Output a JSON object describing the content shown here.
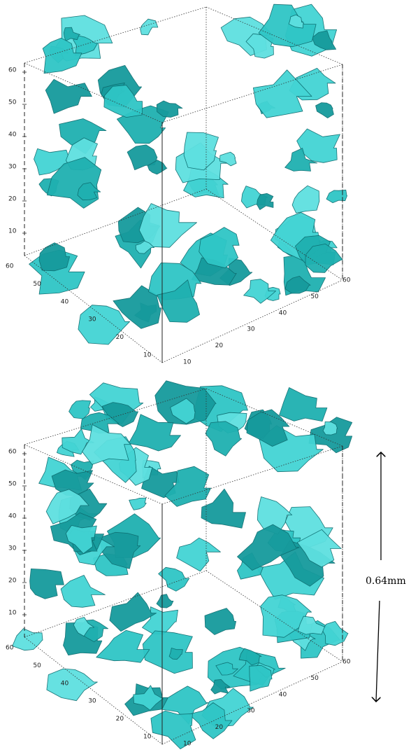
{
  "panels": [
    {
      "z_ticks": [
        "10",
        "20",
        "30",
        "40",
        "50",
        "60"
      ],
      "y_ticks": [
        "10",
        "20",
        "30",
        "40",
        "50",
        "60"
      ],
      "x_ticks": [
        "10",
        "20",
        "30",
        "40",
        "50",
        "60"
      ]
    },
    {
      "z_ticks": [
        "10",
        "20",
        "30",
        "40",
        "50",
        "60"
      ],
      "y_ticks": [
        "10",
        "20",
        "30",
        "40",
        "50",
        "60"
      ],
      "x_ticks": [
        "10",
        "20",
        "30",
        "40",
        "50",
        "60"
      ]
    }
  ],
  "scale": {
    "label": "0.64mm"
  }
}
